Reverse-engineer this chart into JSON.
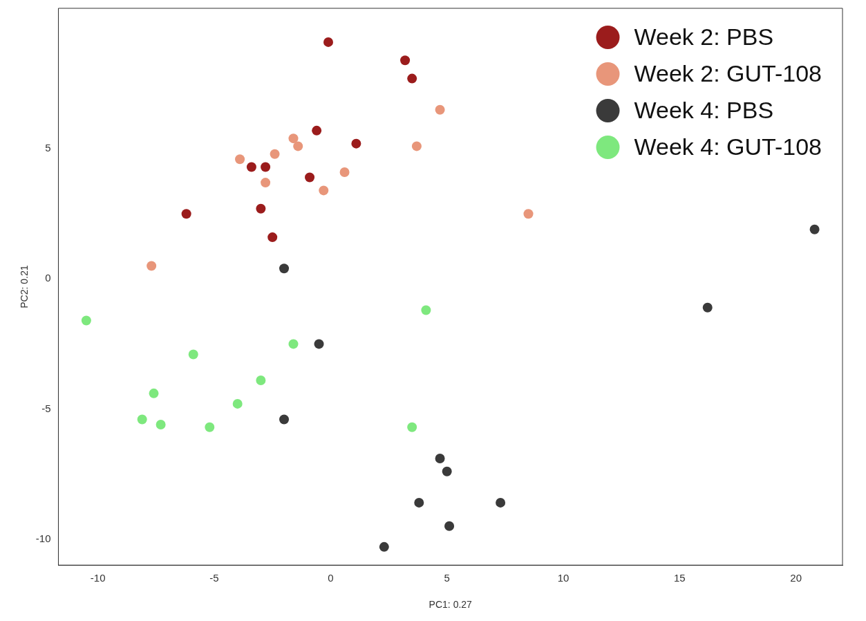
{
  "chart_data": {
    "type": "scatter",
    "xlabel": "PC1: 0.27",
    "ylabel": "PC2: 0.21",
    "xlim": [
      -11.7,
      22.0
    ],
    "ylim": [
      -11.0,
      10.4
    ],
    "xticks": [
      -10,
      -5,
      0,
      5,
      10,
      15,
      20
    ],
    "yticks": [
      -10,
      -5,
      0,
      5
    ],
    "grid": false,
    "legend": "top right",
    "marker": "circle",
    "series": [
      {
        "name": "Week 2: PBS",
        "color": "#9b1c1c",
        "x": [
          -0.1,
          3.2,
          3.5,
          -0.6,
          1.1,
          -3.4,
          -2.8,
          -0.9,
          -6.2,
          -3.0,
          -2.5
        ],
        "values": [
          9.1,
          8.4,
          7.7,
          5.7,
          5.2,
          4.3,
          4.3,
          3.9,
          2.5,
          2.7,
          1.6
        ]
      },
      {
        "name": "Week 2: GUT-108",
        "color": "#e8967a",
        "x": [
          4.7,
          -1.6,
          -1.4,
          -2.4,
          -3.9,
          3.7,
          0.6,
          -2.8,
          -0.3,
          8.5,
          -7.7
        ],
        "values": [
          6.5,
          5.4,
          5.1,
          4.8,
          4.6,
          5.1,
          4.1,
          3.7,
          3.4,
          2.5,
          0.5
        ]
      },
      {
        "name": "Week 4: PBS",
        "color": "#3a3a3a",
        "x": [
          20.8,
          16.2,
          -2.0,
          -0.5,
          -2.0,
          4.7,
          5.0,
          3.8,
          7.3,
          5.1,
          2.3
        ],
        "values": [
          1.9,
          -1.1,
          0.4,
          -2.5,
          -5.4,
          -6.9,
          -7.4,
          -8.6,
          -8.6,
          -9.5,
          -10.3
        ]
      },
      {
        "name": "Week 4: GUT-108",
        "color": "#7ee87e",
        "x": [
          -10.5,
          4.1,
          -1.6,
          -5.9,
          -3.0,
          -7.6,
          -4.0,
          -8.1,
          -7.3,
          -5.2,
          3.5
        ],
        "values": [
          -1.6,
          -1.2,
          -2.5,
          -2.9,
          -3.9,
          -4.4,
          -4.8,
          -5.4,
          -5.6,
          -5.7,
          -5.7
        ]
      }
    ]
  }
}
